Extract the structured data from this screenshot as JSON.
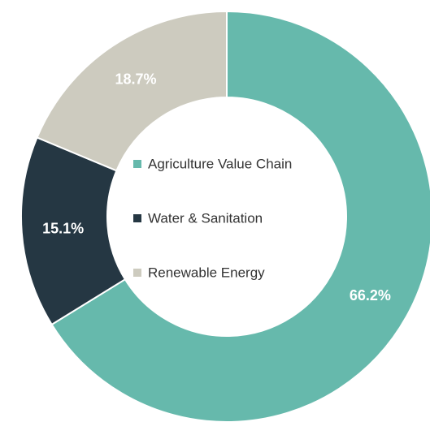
{
  "chart_data": {
    "type": "donut",
    "categories": [
      "Agriculture Value Chain",
      "Water & Sanitation",
      "Renewable Energy"
    ],
    "values": [
      66.2,
      15.1,
      18.7
    ],
    "value_labels": [
      "66.2%",
      "15.1%",
      "18.7%"
    ],
    "colors": [
      "#66b9ac",
      "#253743",
      "#cdcbbf"
    ],
    "legend": "center"
  }
}
